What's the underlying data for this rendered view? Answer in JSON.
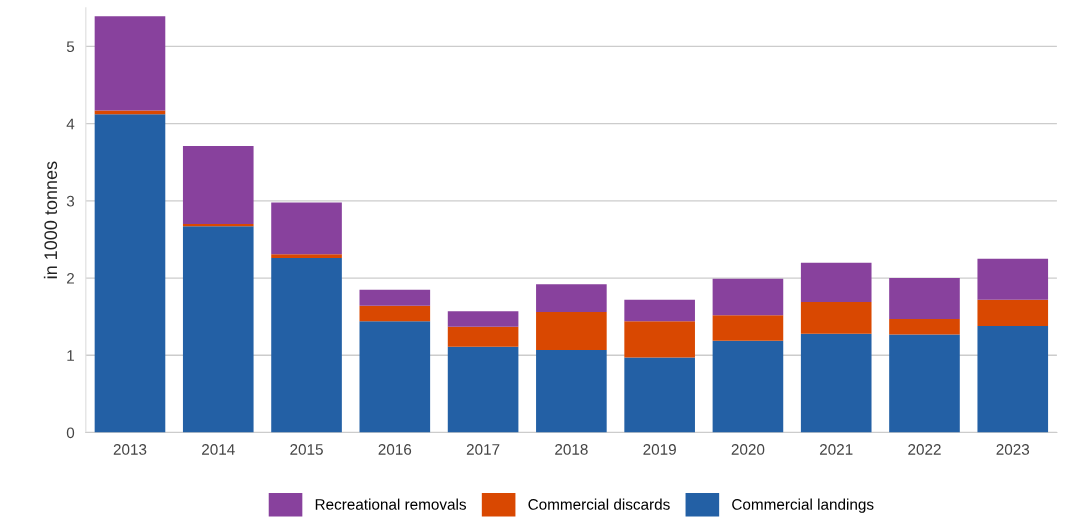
{
  "chart_data": {
    "type": "bar",
    "stacked": true,
    "ylabel": "in 1000 tonnes",
    "categories": [
      "2013",
      "2014",
      "2015",
      "2016",
      "2017",
      "2018",
      "2019",
      "2020",
      "2021",
      "2022",
      "2023"
    ],
    "series": [
      {
        "name": "Commercial landings",
        "color": "#2360a5",
        "values": [
          4.12,
          2.67,
          2.26,
          1.44,
          1.11,
          1.07,
          0.97,
          1.19,
          1.28,
          1.27,
          1.38
        ]
      },
      {
        "name": "Commercial discards",
        "color": "#d94801",
        "values": [
          0.05,
          0.03,
          0.05,
          0.2,
          0.26,
          0.49,
          0.47,
          0.33,
          0.41,
          0.2,
          0.34
        ]
      },
      {
        "name": "Recreational removals",
        "color": "#88419d",
        "values": [
          1.22,
          1.01,
          0.67,
          0.21,
          0.2,
          0.36,
          0.28,
          0.47,
          0.51,
          0.53,
          0.53
        ]
      }
    ],
    "ylim": [
      0,
      5.5
    ],
    "yticks": [
      0,
      1,
      2,
      3,
      4,
      5
    ],
    "grid": "y",
    "legend": "bottom"
  }
}
